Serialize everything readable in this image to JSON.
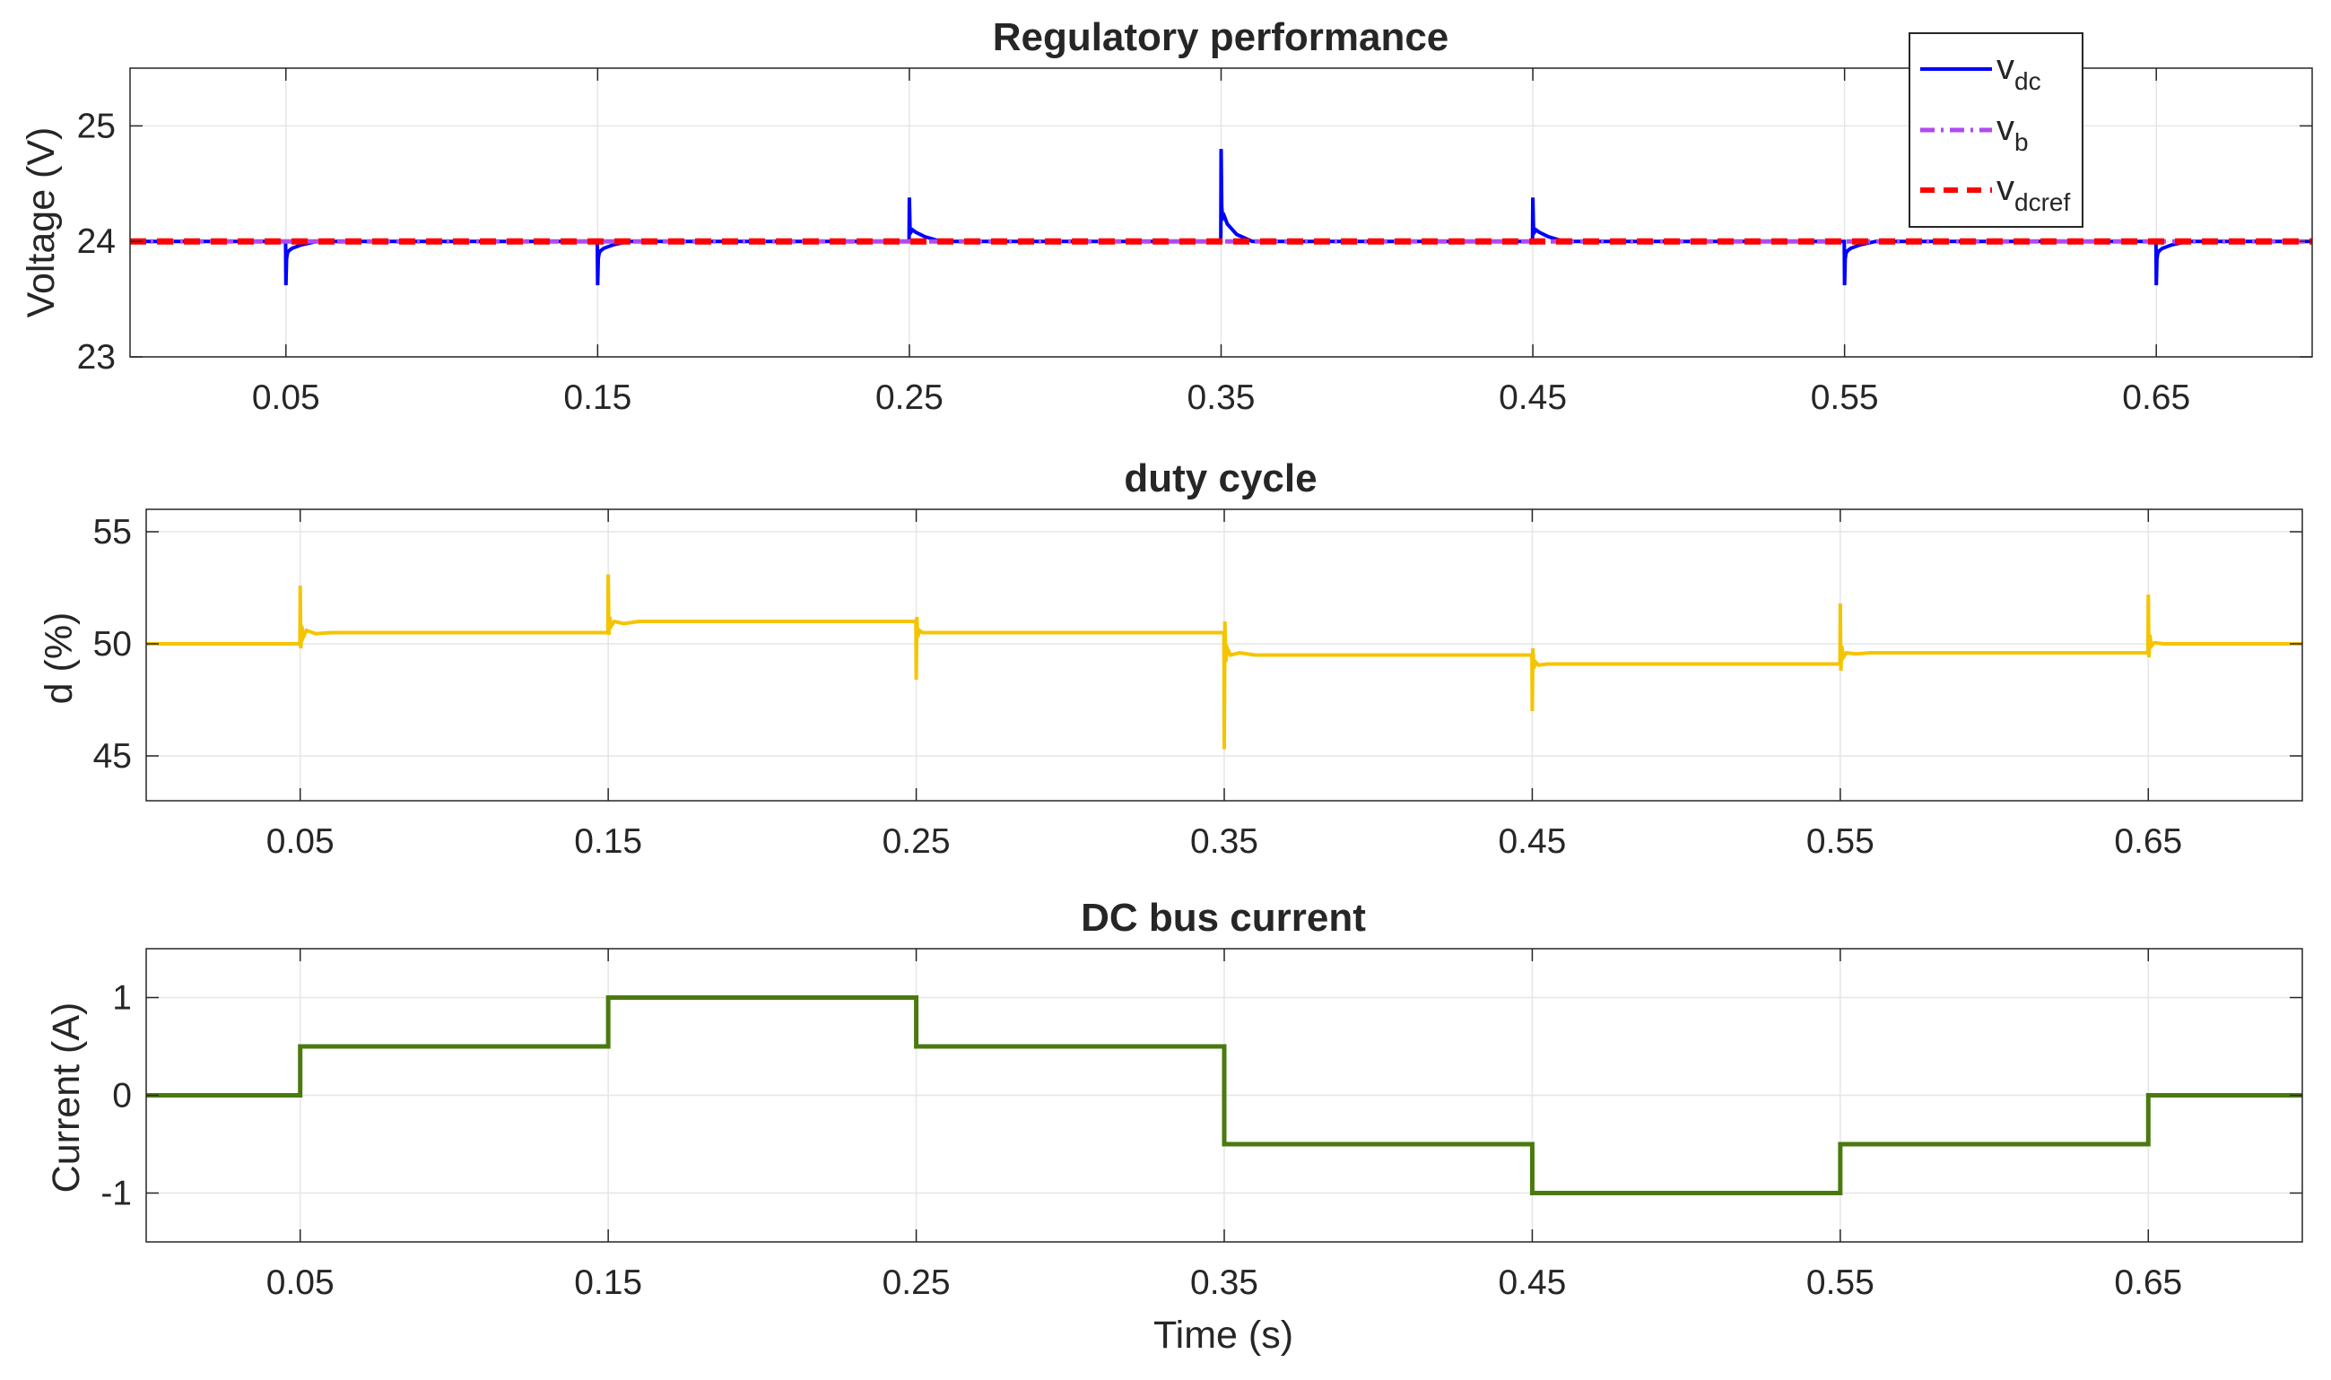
{
  "chart_data": [
    {
      "type": "line",
      "title": "Regulatory performance",
      "xlabel": "",
      "ylabel": "Voltage (V)",
      "xlim": [
        0,
        0.7
      ],
      "ylim": [
        23,
        25.5
      ],
      "xticks": [
        0.05,
        0.15,
        0.25,
        0.35,
        0.45,
        0.55,
        0.65
      ],
      "xtick_labels": [
        "0.05",
        "0.15",
        "0.25",
        "0.35",
        "0.45",
        "0.55",
        "0.65"
      ],
      "yticks": [
        23,
        24,
        25
      ],
      "ytick_labels": [
        "23",
        "24",
        "25"
      ],
      "grid": true,
      "legend": {
        "placement": "top-right",
        "entries": [
          {
            "base": "v",
            "sub": "dc"
          },
          {
            "base": "v",
            "sub": "b"
          },
          {
            "base": "v",
            "sub": "dcref"
          }
        ]
      },
      "series": [
        {
          "name": "vdc",
          "color": "#0000ff",
          "style": "solid",
          "x": [
            0,
            0.0499,
            0.05,
            0.0502,
            0.0505,
            0.051,
            0.052,
            0.055,
            0.06,
            0.1499,
            0.15,
            0.1502,
            0.1505,
            0.151,
            0.152,
            0.155,
            0.16,
            0.2499,
            0.25,
            0.2502,
            0.2505,
            0.251,
            0.252,
            0.255,
            0.26,
            0.3499,
            0.35,
            0.3502,
            0.3505,
            0.351,
            0.352,
            0.355,
            0.36,
            0.4499,
            0.45,
            0.4502,
            0.4505,
            0.451,
            0.452,
            0.455,
            0.46,
            0.5499,
            0.55,
            0.5502,
            0.5505,
            0.551,
            0.552,
            0.555,
            0.56,
            0.6499,
            0.65,
            0.6502,
            0.6505,
            0.651,
            0.652,
            0.655,
            0.66,
            0.7
          ],
          "y": [
            24,
            24,
            23.62,
            23.85,
            23.9,
            23.92,
            23.94,
            23.97,
            24,
            24,
            23.62,
            23.85,
            23.9,
            23.92,
            23.94,
            23.97,
            24,
            24,
            24.38,
            24.12,
            24.08,
            24.1,
            24.08,
            24.04,
            24,
            24,
            24.8,
            24.3,
            24.2,
            24.22,
            24.15,
            24.06,
            24,
            24,
            24.38,
            24.12,
            24.08,
            24.1,
            24.08,
            24.04,
            24,
            24,
            23.62,
            23.85,
            23.9,
            23.92,
            23.94,
            23.97,
            24,
            24,
            23.62,
            23.85,
            23.9,
            23.92,
            23.94,
            23.97,
            24,
            24
          ]
        },
        {
          "name": "vb",
          "color": "#b04af0",
          "style": "dashdot",
          "x": [
            0,
            0.7
          ],
          "y": [
            24,
            24
          ]
        },
        {
          "name": "vdcref",
          "color": "#ff0000",
          "style": "dashed",
          "x": [
            0,
            0.7
          ],
          "y": [
            24,
            24
          ]
        }
      ]
    },
    {
      "type": "line",
      "title": "duty cycle",
      "xlabel": "",
      "ylabel": "d (%)",
      "xlim": [
        0,
        0.7
      ],
      "ylim": [
        43,
        56
      ],
      "xticks": [
        0.05,
        0.15,
        0.25,
        0.35,
        0.45,
        0.55,
        0.65
      ],
      "xtick_labels": [
        "0.05",
        "0.15",
        "0.25",
        "0.35",
        "0.45",
        "0.55",
        "0.65"
      ],
      "yticks": [
        45,
        50,
        55
      ],
      "ytick_labels": [
        "45",
        "50",
        "55"
      ],
      "grid": true,
      "series": [
        {
          "name": "d",
          "color": "#f5c400",
          "style": "solid",
          "x": [
            0,
            0.0499,
            0.05,
            0.0502,
            0.0505,
            0.051,
            0.052,
            0.055,
            0.06,
            0.1499,
            0.15,
            0.1502,
            0.1505,
            0.151,
            0.152,
            0.155,
            0.16,
            0.2499,
            0.25,
            0.2502,
            0.2505,
            0.251,
            0.252,
            0.255,
            0.26,
            0.3499,
            0.35,
            0.3502,
            0.3505,
            0.351,
            0.352,
            0.355,
            0.36,
            0.4499,
            0.45,
            0.4502,
            0.4505,
            0.451,
            0.452,
            0.455,
            0.46,
            0.5499,
            0.55,
            0.5502,
            0.5505,
            0.551,
            0.552,
            0.555,
            0.56,
            0.6499,
            0.65,
            0.6502,
            0.6505,
            0.651,
            0.652,
            0.655,
            0.66,
            0.7
          ],
          "y": [
            50,
            50,
            52.6,
            49.8,
            50.8,
            50.3,
            50.6,
            50.45,
            50.5,
            50.5,
            53.1,
            50.4,
            51.2,
            50.8,
            51.0,
            50.9,
            51.0,
            51.0,
            48.4,
            51.2,
            50.3,
            50.6,
            50.5,
            50.5,
            50.5,
            50.5,
            45.3,
            51.0,
            49.2,
            49.8,
            49.5,
            49.6,
            49.5,
            49.5,
            47.0,
            49.8,
            48.9,
            49.2,
            49.05,
            49.1,
            49.1,
            49.1,
            51.8,
            48.8,
            49.9,
            49.4,
            49.6,
            49.55,
            49.6,
            49.6,
            52.2,
            49.4,
            50.4,
            49.9,
            50.05,
            50.0,
            50.0,
            50.0
          ]
        }
      ]
    },
    {
      "type": "line",
      "title": "DC bus current",
      "xlabel": "Time (s)",
      "ylabel": "Current (A)",
      "xlim": [
        0,
        0.7
      ],
      "ylim": [
        -1.5,
        1.5
      ],
      "xticks": [
        0.05,
        0.15,
        0.25,
        0.35,
        0.45,
        0.55,
        0.65
      ],
      "xtick_labels": [
        "0.05",
        "0.15",
        "0.25",
        "0.35",
        "0.45",
        "0.55",
        "0.65"
      ],
      "yticks": [
        -1,
        0,
        1
      ],
      "ytick_labels": [
        "-1",
        "0",
        "1"
      ],
      "grid": true,
      "series": [
        {
          "name": "i",
          "color": "#4a7a0f",
          "style": "solid",
          "x": [
            0,
            0.05,
            0.05,
            0.15,
            0.15,
            0.25,
            0.25,
            0.35,
            0.35,
            0.45,
            0.45,
            0.55,
            0.55,
            0.65,
            0.65,
            0.7
          ],
          "y": [
            0,
            0,
            0.5,
            0.5,
            1,
            1,
            0.5,
            0.5,
            -0.5,
            -0.5,
            -1,
            -1,
            -0.5,
            -0.5,
            0,
            0
          ]
        }
      ]
    }
  ]
}
